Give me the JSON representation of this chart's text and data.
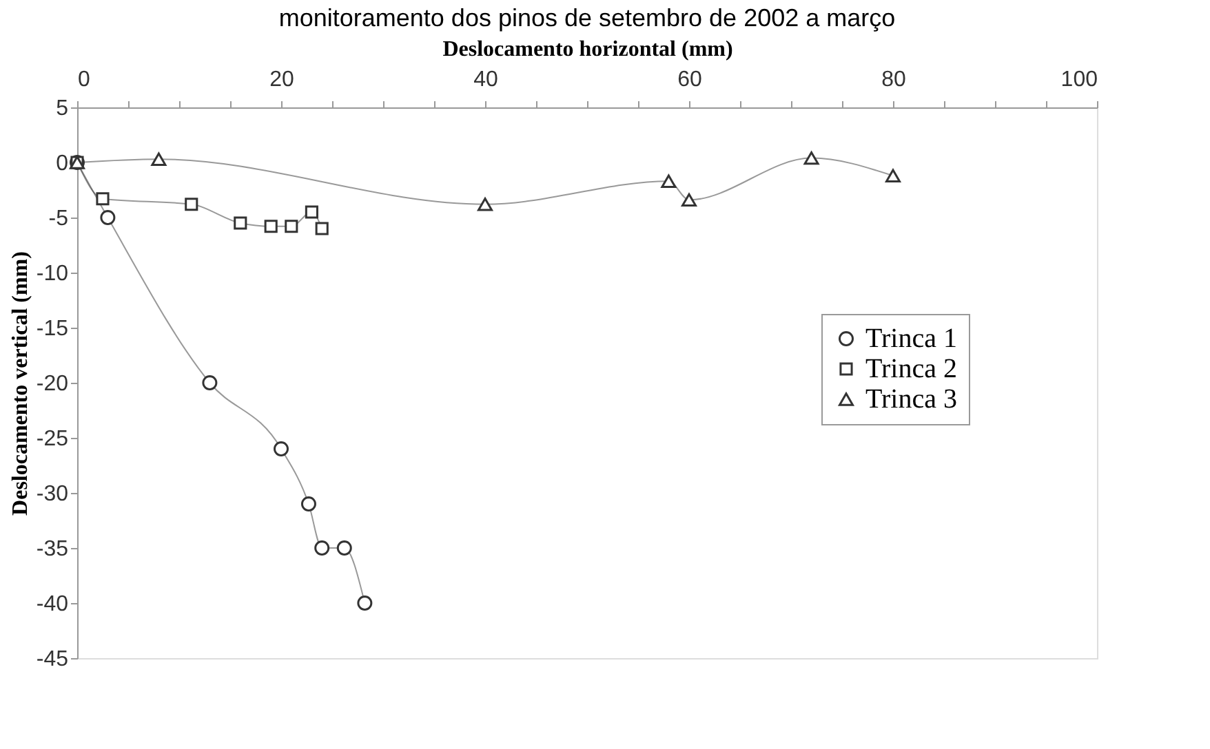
{
  "chart_data": {
    "type": "line",
    "title": "monitoramento dos pinos de setembro de 2002 a março",
    "xlabel": "Deslocamento horizontal (mm)",
    "ylabel": "Deslocamento vertical (mm)",
    "xlim": [
      0,
      100
    ],
    "ylim": [
      -45,
      5
    ],
    "xticks": [
      0,
      {
        "value": 5,
        "label": null
      },
      {
        "value": 10,
        "label": null
      },
      {
        "value": 15,
        "label": null
      },
      20,
      {
        "value": 25,
        "label": null
      },
      {
        "value": 30,
        "label": null
      },
      {
        "value": 35,
        "label": null
      },
      40,
      {
        "value": 45,
        "label": null
      },
      {
        "value": 50,
        "label": null
      },
      {
        "value": 55,
        "label": null
      },
      60,
      {
        "value": 65,
        "label": null
      },
      {
        "value": 70,
        "label": null
      },
      {
        "value": 75,
        "label": null
      },
      80,
      {
        "value": 85,
        "label": null
      },
      {
        "value": 90,
        "label": null
      },
      {
        "value": 95,
        "label": null
      },
      100
    ],
    "yticks": [
      5,
      0,
      -5,
      -10,
      -15,
      -20,
      -25,
      -30,
      -35,
      -40,
      -45
    ],
    "grid": false,
    "legend": "right",
    "line_style": "solid",
    "series": [
      {
        "name": "Trinca 1",
        "color": "#333333",
        "marker": "circle",
        "x": [
          0,
          3,
          13,
          20,
          22.7,
          24,
          26.2,
          28.2
        ],
        "values": [
          0,
          -5,
          -20,
          -26,
          -31,
          -35,
          -35,
          -40
        ]
      },
      {
        "name": "Trinca 2",
        "color": "#333333",
        "marker": "square",
        "x": [
          0,
          2.5,
          11.2,
          16,
          19,
          21,
          23,
          24
        ],
        "values": [
          0,
          -3.3,
          -3.8,
          -5.5,
          -5.8,
          -5.8,
          -4.5,
          -6
        ]
      },
      {
        "name": "Trinca 3",
        "color": "#333333",
        "marker": "triangle",
        "x": [
          0,
          8,
          40,
          58,
          60,
          72,
          80
        ],
        "values": [
          0,
          0.3,
          -3.8,
          -1.7,
          -3.4,
          0.4,
          -1.2
        ]
      }
    ]
  }
}
